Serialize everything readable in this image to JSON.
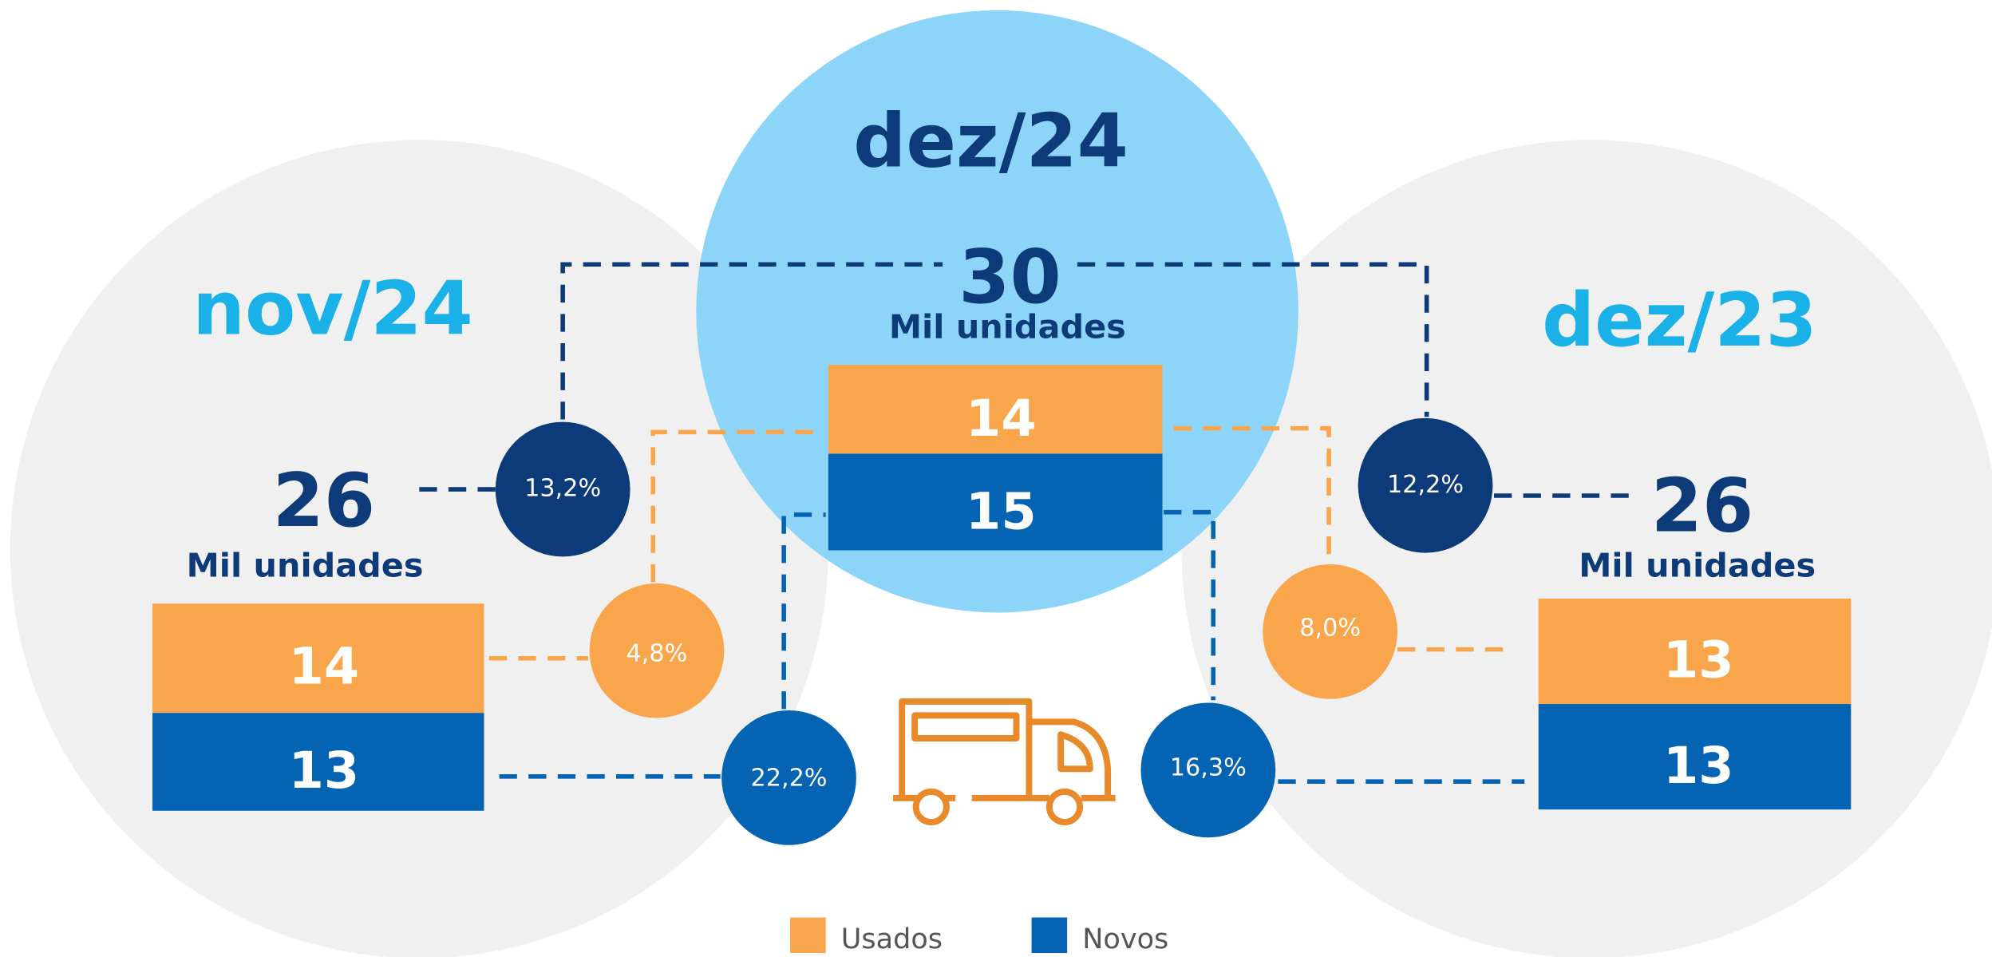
{
  "periods": [
    {
      "label": "nov/24",
      "total": 26,
      "unit": "Mil unidades",
      "usados": 14,
      "novos": 13
    },
    {
      "label": "dez/24",
      "total": 30,
      "unit": "Mil unidades",
      "usados": 14,
      "novos": 15
    },
    {
      "label": "dez/23",
      "total": 26,
      "unit": "Mil unidades",
      "usados": 13,
      "novos": 13
    }
  ],
  "changes": {
    "total_vs_nov24": "13,2%",
    "total_vs_dez23": "12,2%",
    "usados_vs_nov24": "4,8%",
    "usados_vs_dez23": "8,0%",
    "novos_vs_nov24": "22,2%",
    "novos_vs_dez23": "16,3%"
  },
  "legend": [
    "Usados",
    "Novos"
  ]
}
